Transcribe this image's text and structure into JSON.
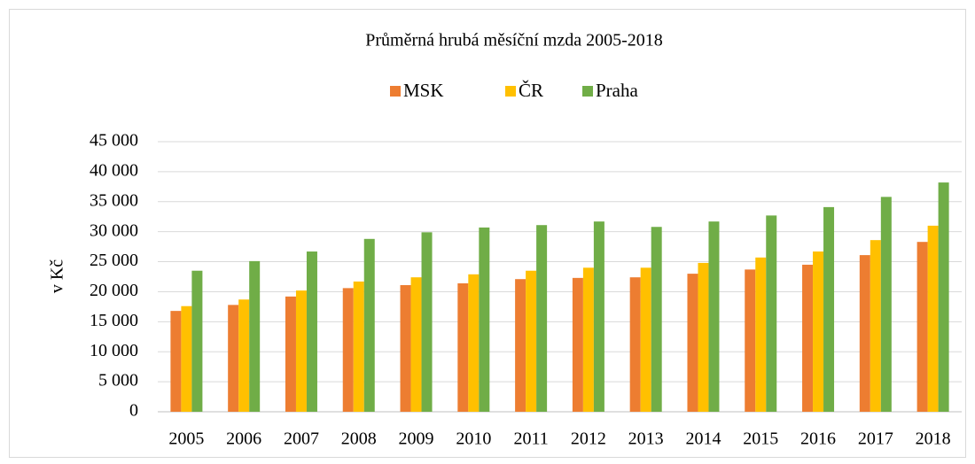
{
  "chart_data": {
    "type": "bar",
    "title": "Průměrná hrubá měsíční mzda 2005-2018",
    "y_label": "v Kč",
    "categories": [
      "2005",
      "2006",
      "2007",
      "2008",
      "2009",
      "2010",
      "2011",
      "2012",
      "2013",
      "2014",
      "2015",
      "2016",
      "2017",
      "2018"
    ],
    "series": [
      {
        "name": "MSK",
        "color": "#ed7d31",
        "values": [
          16800,
          17800,
          19200,
          20600,
          21100,
          21400,
          22100,
          22300,
          22400,
          23000,
          23700,
          24500,
          26100,
          28300
        ]
      },
      {
        "name": "ČR",
        "color": "#ffc000",
        "values": [
          17600,
          18700,
          20200,
          21700,
          22400,
          22900,
          23500,
          24000,
          24000,
          24800,
          25700,
          26700,
          28600,
          31000
        ]
      },
      {
        "name": "Praha",
        "color": "#70ad47",
        "values": [
          23500,
          25100,
          26700,
          28800,
          29900,
          30700,
          31100,
          31700,
          30800,
          31700,
          32700,
          34100,
          35800,
          38200
        ]
      }
    ],
    "ylim": [
      0,
      45000
    ],
    "yticks": [
      0,
      {
        "value": 5000,
        "label": "5 000"
      },
      {
        "value": 10000,
        "label": "10 000"
      },
      {
        "value": 15000,
        "label": "15 000"
      },
      {
        "value": 20000,
        "label": "20 000"
      },
      {
        "value": 25000,
        "label": "25 000"
      },
      {
        "value": 30000,
        "label": "30 000"
      },
      {
        "value": 35000,
        "label": "35 000"
      },
      {
        "value": 40000,
        "label": "40 000"
      },
      {
        "value": 45000,
        "label": "45 000"
      }
    ],
    "grid": true,
    "legend": "top"
  }
}
